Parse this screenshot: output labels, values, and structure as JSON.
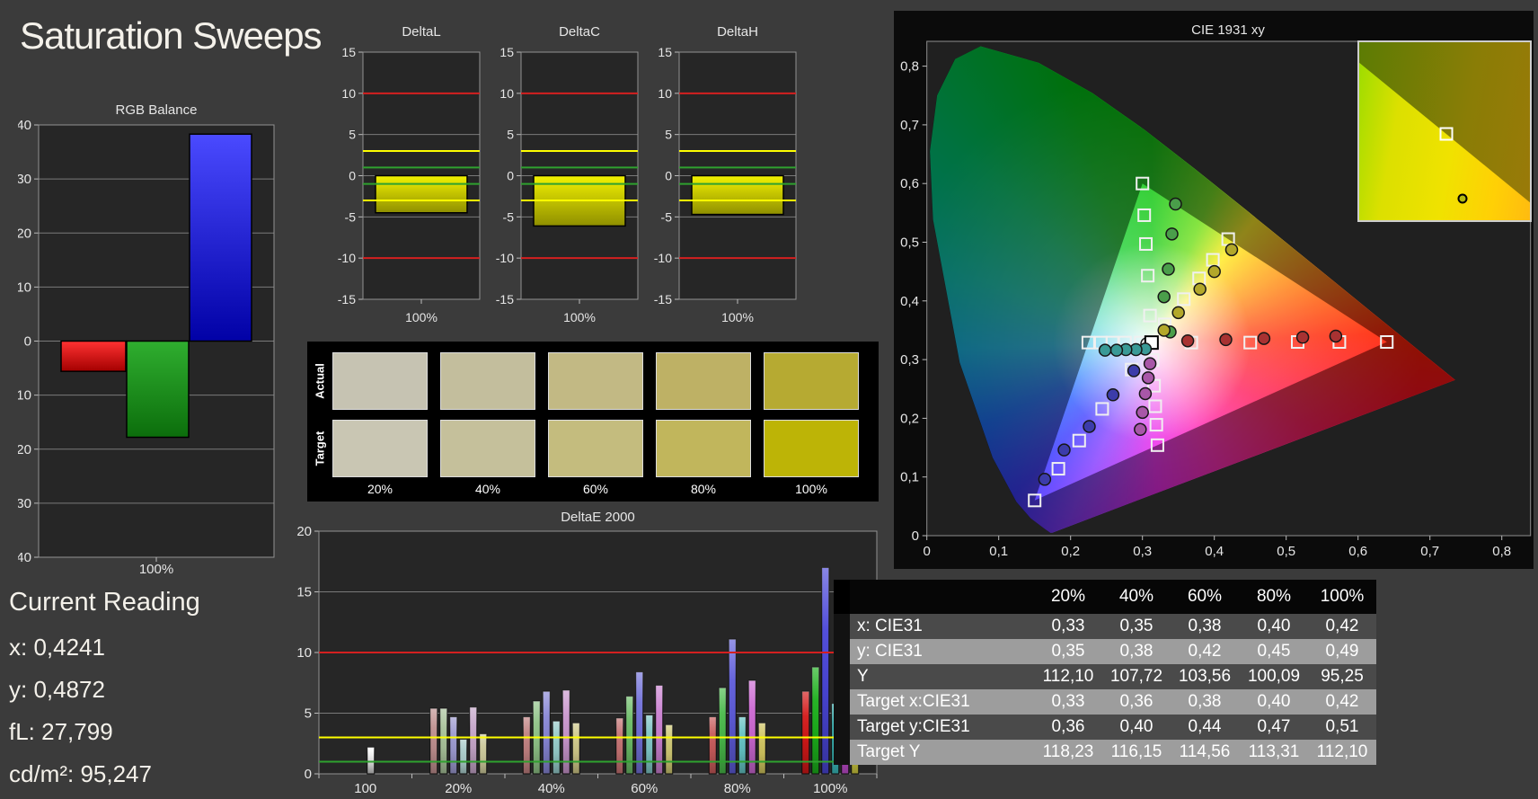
{
  "title": "Saturation Sweeps",
  "colors": {
    "page_bg": "#3b3b3b",
    "panel_bg": "#000000",
    "chart_bg": "#262626",
    "grid": "#7a7a7a",
    "chart_border": "#929292",
    "text": "#e6e6e6",
    "threshold_red": "#d42020",
    "threshold_yellow": "#ffff00",
    "threshold_green": "#2fa12f"
  },
  "current_reading": {
    "heading": "Current Reading",
    "lines": [
      {
        "label": "x:",
        "value": "0,4241"
      },
      {
        "label": "y:",
        "value": "0,4872"
      },
      {
        "label": "fL:",
        "value": "27,799"
      },
      {
        "label": "cd/m²:",
        "value": "95,247"
      }
    ]
  },
  "rgb_balance": {
    "title": "RGB Balance",
    "xlabel": "100%",
    "ylim": [
      -40,
      40
    ],
    "ystep": 10,
    "series": [
      "red",
      "green",
      "blue"
    ],
    "values": [
      -5.6,
      -17.8,
      38.3
    ],
    "bar_colors": {
      "red": [
        "#ff3232",
        "#a40000"
      ],
      "green": [
        "#2fae2f",
        "#0c6e0c"
      ],
      "blue": [
        "#4a4aff",
        "#0101a6"
      ]
    }
  },
  "delta_charts": {
    "ylim": [
      -15,
      15
    ],
    "ystep": 5,
    "xlabel": "100%",
    "thresholds": {
      "red": 10,
      "yellow": 3,
      "green": 1
    },
    "bar_color": [
      "#f2f200",
      "#8f8f00"
    ],
    "items": [
      {
        "title": "DeltaL",
        "value": -4.5
      },
      {
        "title": "DeltaC",
        "value": -6.1
      },
      {
        "title": "DeltaH",
        "value": -4.7
      }
    ]
  },
  "swatches": {
    "row_labels": [
      "Actual",
      "Target"
    ],
    "col_labels": [
      "20%",
      "40%",
      "60%",
      "80%",
      "100%"
    ],
    "actual": [
      "#c6c3b2",
      "#c3be9d",
      "#c2b984",
      "#beb165",
      "#b6aa32"
    ],
    "target": [
      "#c9c6b3",
      "#c5c09b",
      "#c4bc7e",
      "#c1b65c",
      "#bdb406"
    ]
  },
  "deltae2000": {
    "title": "DeltaE 2000",
    "ylim": [
      0,
      20
    ],
    "ystep": 5,
    "thresholds": {
      "red": 10,
      "yellow": 3,
      "green": 1
    },
    "groups": [
      "100",
      "20%",
      "40%",
      "60%",
      "80%",
      "100%"
    ],
    "white_bar": 2.2,
    "white_bar_color": [
      "#ffffff",
      "#c2c2c2"
    ],
    "series_order": [
      "red",
      "green",
      "blue",
      "cyan",
      "magenta",
      "yellow"
    ],
    "values": {
      "20%": [
        5.4,
        5.4,
        4.7,
        2.85,
        5.5,
        3.3
      ],
      "40%": [
        4.7,
        6.0,
        6.8,
        4.35,
        6.9,
        4.2
      ],
      "60%": [
        4.6,
        6.4,
        8.4,
        4.85,
        7.3,
        4.05
      ],
      "80%": [
        4.7,
        7.1,
        11.1,
        4.7,
        7.7,
        4.2
      ],
      "100%": [
        6.8,
        8.8,
        17.0,
        5.8,
        9.1,
        4.9
      ]
    },
    "bar_colors": {
      "red": [
        "#bf8f8f",
        "#c08080",
        "#c47272",
        "#c65a5a",
        "#d21818"
      ],
      "green": [
        "#a8c29a",
        "#8fc387",
        "#6cbd67",
        "#49b94a",
        "#1cb01c"
      ],
      "blue": [
        "#9c99d0",
        "#8886d6",
        "#7271da",
        "#5e5cda",
        "#4a46d8"
      ],
      "cyan": [
        "#aacccb",
        "#94cac8",
        "#7ec6c6",
        "#63c2c2",
        "#3abcbc"
      ],
      "magenta": [
        "#c5a5c9",
        "#c996cd",
        "#cb81d1",
        "#cc68d2",
        "#c44ed2"
      ],
      "yellow": [
        "#ccc99b",
        "#cdc787",
        "#cec772",
        "#cfc35e",
        "#cfca40"
      ]
    }
  },
  "cie": {
    "title": "CIE 1931 xy",
    "xticks": [
      "0",
      "0,1",
      "0,2",
      "0,3",
      "0,4",
      "0,5",
      "0,6",
      "0,7",
      "0,8"
    ],
    "yticks": [
      "0",
      "0,1",
      "0,2",
      "0,3",
      "0,4",
      "0,5",
      "0,6",
      "0,7",
      "0,8"
    ],
    "white_point": [
      0.3127,
      0.329
    ],
    "white_measured": [
      0.306,
      0.327
    ],
    "gamut": {
      "red": [
        0.64,
        0.33
      ],
      "green": [
        0.3,
        0.6
      ],
      "blue": [
        0.15,
        0.06
      ]
    },
    "targets": {
      "red": [
        [
          0.368,
          0.329
        ],
        [
          0.45,
          0.329
        ],
        [
          0.516,
          0.33
        ],
        [
          0.574,
          0.33
        ],
        [
          0.64,
          0.33
        ]
      ],
      "green": [
        [
          0.3105,
          0.375
        ],
        [
          0.3074,
          0.443
        ],
        [
          0.3048,
          0.497
        ],
        [
          0.3025,
          0.546
        ],
        [
          0.3,
          0.6
        ]
      ],
      "blue": [
        [
          0.285,
          0.283
        ],
        [
          0.244,
          0.216
        ],
        [
          0.212,
          0.162
        ],
        [
          0.183,
          0.114
        ],
        [
          0.15,
          0.06
        ]
      ],
      "cyan": [
        [
          0.2977,
          0.329
        ],
        [
          0.2757,
          0.329
        ],
        [
          0.2581,
          0.329
        ],
        [
          0.2422,
          0.329
        ],
        [
          0.2246,
          0.329
        ]
      ],
      "magenta": [
        [
          0.3141,
          0.2993
        ],
        [
          0.3162,
          0.2555
        ],
        [
          0.3178,
          0.2205
        ],
        [
          0.3193,
          0.189
        ],
        [
          0.3209,
          0.1542
        ]
      ],
      "yellow": [
        [
          0.331,
          0.36
        ],
        [
          0.3575,
          0.403
        ],
        [
          0.3788,
          0.4383
        ],
        [
          0.398,
          0.47
        ],
        [
          0.4193,
          0.5053
        ]
      ]
    },
    "measured": {
      "red": [
        [
          0.363,
          0.332
        ],
        [
          0.416,
          0.334
        ],
        [
          0.469,
          0.336
        ],
        [
          0.523,
          0.338
        ],
        [
          0.569,
          0.34
        ]
      ],
      "green": [
        [
          0.3385,
          0.347
        ],
        [
          0.33,
          0.407
        ],
        [
          0.336,
          0.454
        ],
        [
          0.341,
          0.514
        ],
        [
          0.346,
          0.565
        ]
      ],
      "blue": [
        [
          0.288,
          0.281
        ],
        [
          0.259,
          0.24
        ],
        [
          0.226,
          0.186
        ],
        [
          0.191,
          0.146
        ],
        [
          0.164,
          0.096
        ]
      ],
      "cyan": [
        [
          0.304,
          0.318
        ],
        [
          0.291,
          0.317
        ],
        [
          0.277,
          0.317
        ],
        [
          0.264,
          0.316
        ],
        [
          0.248,
          0.316
        ]
      ],
      "magenta": [
        [
          0.3105,
          0.293
        ],
        [
          0.308,
          0.269
        ],
        [
          0.304,
          0.242
        ],
        [
          0.3,
          0.21
        ],
        [
          0.297,
          0.181
        ]
      ],
      "yellow": [
        [
          0.33,
          0.35
        ],
        [
          0.35,
          0.38
        ],
        [
          0.38,
          0.42
        ],
        [
          0.4,
          0.45
        ],
        [
          0.4241,
          0.4872
        ]
      ]
    },
    "marker_colors": {
      "red": "#a83232",
      "green": "#4a9e4a",
      "blue": "#3c3caa",
      "cyan": "#3a9a96",
      "magenta": "#a857a8",
      "yellow": "#b3a82a",
      "white": "#e9e9e9"
    },
    "locus": [
      [
        0.1741,
        0.005
      ],
      [
        0.1714,
        0.0051
      ],
      [
        0.1644,
        0.0109
      ],
      [
        0.144,
        0.0297
      ],
      [
        0.1241,
        0.0578
      ],
      [
        0.0913,
        0.1327
      ],
      [
        0.0454,
        0.295
      ],
      [
        0.0082,
        0.5384
      ],
      [
        0.0039,
        0.6548
      ],
      [
        0.0139,
        0.7502
      ],
      [
        0.0389,
        0.812
      ],
      [
        0.0743,
        0.8338
      ],
      [
        0.1547,
        0.8059
      ],
      [
        0.2296,
        0.7543
      ],
      [
        0.3016,
        0.6923
      ],
      [
        0.3731,
        0.6245
      ],
      [
        0.4441,
        0.5547
      ],
      [
        0.5125,
        0.4866
      ],
      [
        0.5752,
        0.4242
      ],
      [
        0.627,
        0.3725
      ],
      [
        0.6658,
        0.334
      ],
      [
        0.6915,
        0.3083
      ],
      [
        0.714,
        0.2859
      ],
      [
        0.7347,
        0.2653
      ]
    ]
  },
  "table": {
    "col_headers": [
      "20%",
      "40%",
      "60%",
      "80%",
      "100%"
    ],
    "rows": [
      {
        "label": "x: CIE31",
        "values": [
          "0,33",
          "0,35",
          "0,38",
          "0,40",
          "0,42"
        ]
      },
      {
        "label": "y: CIE31",
        "values": [
          "0,35",
          "0,38",
          "0,42",
          "0,45",
          "0,49"
        ]
      },
      {
        "label": "Y",
        "values": [
          "112,10",
          "107,72",
          "103,56",
          "100,09",
          "95,25"
        ]
      },
      {
        "label": "Target x:CIE31",
        "values": [
          "0,33",
          "0,36",
          "0,38",
          "0,40",
          "0,42"
        ]
      },
      {
        "label": "Target y:CIE31",
        "values": [
          "0,36",
          "0,40",
          "0,44",
          "0,47",
          "0,51"
        ]
      },
      {
        "label": "Target Y",
        "values": [
          "118,23",
          "116,15",
          "114,56",
          "113,31",
          "112,10"
        ]
      }
    ]
  }
}
